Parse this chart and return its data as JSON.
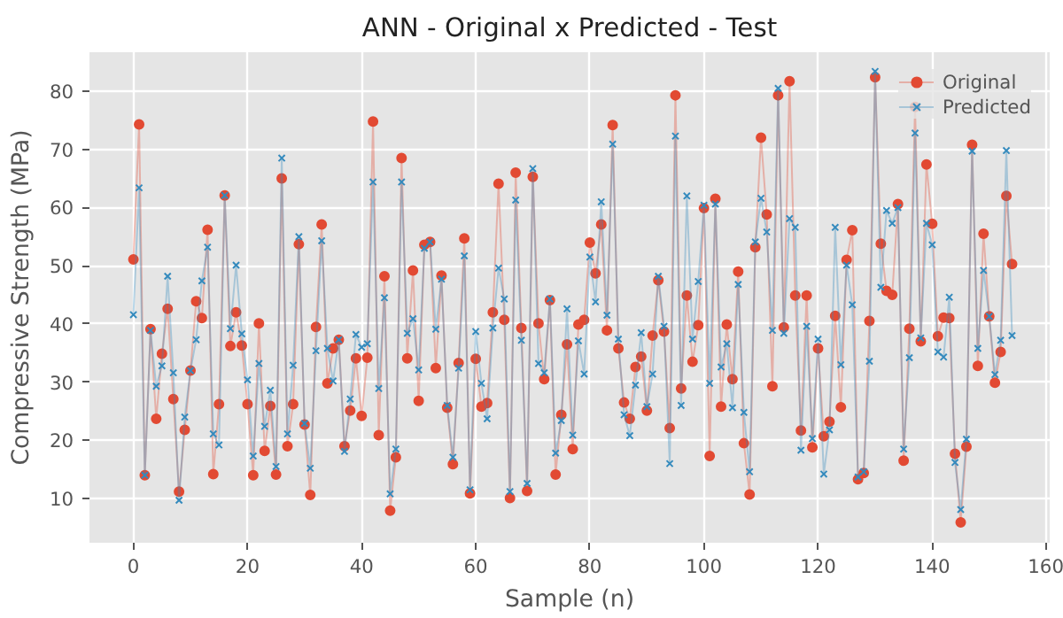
{
  "chart_data": {
    "type": "line",
    "title": "ANN - Original x Predicted - Test",
    "xlabel": "Sample (n)",
    "ylabel": "Compressive Strength (MPa)",
    "x": [
      0,
      1,
      2,
      3,
      4,
      5,
      6,
      7,
      8,
      9,
      10,
      11,
      12,
      13,
      14,
      15,
      16,
      17,
      18,
      19,
      20,
      21,
      22,
      23,
      24,
      25,
      26,
      27,
      28,
      29,
      30,
      31,
      32,
      33,
      34,
      35,
      36,
      37,
      38,
      39,
      40,
      41,
      42,
      43,
      44,
      45,
      46,
      47,
      48,
      49,
      50,
      51,
      52,
      53,
      54,
      55,
      56,
      57,
      58,
      59,
      60,
      61,
      62,
      63,
      64,
      65,
      66,
      67,
      68,
      69,
      70,
      71,
      72,
      73,
      74,
      75,
      76,
      77,
      78,
      79,
      80,
      81,
      82,
      83,
      84,
      85,
      86,
      87,
      88,
      89,
      90,
      91,
      92,
      93,
      94,
      95,
      96,
      97,
      98,
      99,
      100,
      101,
      102,
      103,
      104,
      105,
      106,
      107,
      108,
      109,
      110,
      111,
      112,
      113,
      114,
      115,
      116,
      117,
      118,
      119,
      120,
      121,
      122,
      123,
      124,
      125,
      126,
      127,
      128,
      129,
      130,
      131,
      132,
      133,
      134,
      135,
      136,
      137,
      138,
      139,
      140,
      141,
      142,
      143,
      144,
      145,
      146,
      147,
      148,
      149,
      150,
      151,
      152,
      153,
      154
    ],
    "series": [
      {
        "name": "Original",
        "color": "#e24a33",
        "marker": "circle",
        "values": [
          51.1,
          74.3,
          14,
          39.1,
          23.7,
          34.9,
          42.6,
          27.1,
          11.2,
          21.8,
          32,
          43.9,
          41,
          56.2,
          14.2,
          26.2,
          62.1,
          36.2,
          42,
          36.3,
          26.2,
          14,
          40.1,
          18.2,
          25.9,
          14.1,
          65,
          19,
          26.2,
          53.7,
          22.7,
          10.6,
          39.5,
          57.1,
          29.8,
          35.8,
          37.3,
          19,
          25.1,
          34.1,
          24.2,
          34.2,
          74.8,
          20.9,
          48.2,
          7.9,
          17.1,
          68.5,
          34.1,
          49.2,
          26.8,
          53.6,
          54.1,
          32.4,
          48.3,
          25.6,
          15.9,
          33.3,
          54.7,
          10.9,
          34,
          25.8,
          26.4,
          42,
          64.1,
          40.7,
          10.1,
          66,
          39.3,
          11.3,
          65.3,
          40.1,
          30.5,
          44.1,
          14.1,
          24.4,
          36.5,
          18.5,
          39.9,
          40.7,
          54,
          48.7,
          57.1,
          38.9,
          74.2,
          35.8,
          26.5,
          23.7,
          32.6,
          34.4,
          25.1,
          38,
          47.5,
          38.7,
          22.1,
          79.3,
          28.9,
          44.9,
          33.5,
          39.8,
          59.9,
          17.3,
          61.5,
          25.8,
          39.9,
          30.5,
          49,
          19.5,
          10.7,
          53.2,
          72,
          58.8,
          29.3,
          79.3,
          39.4,
          81.7,
          44.9,
          21.7,
          44.9,
          18.8,
          35.8,
          20.7,
          23.2,
          41.4,
          25.7,
          51,
          56.1,
          13.3,
          14.4,
          40.5,
          82.4,
          53.8,
          45.7,
          45,
          60.6,
          16.5,
          39.2,
          77.3,
          37,
          67.4,
          57.2,
          37.9,
          41.1,
          41,
          17.7,
          5.9,
          18.9,
          70.8,
          32.8,
          55.5,
          41.3,
          29.9,
          35.2,
          62,
          50.3
        ]
      },
      {
        "name": "Predicted",
        "color": "#348abd",
        "marker": "cross",
        "values": [
          41.6,
          63.4,
          14,
          38.9,
          29.3,
          32.8,
          48.2,
          31.6,
          9.7,
          24,
          32,
          37.3,
          47.4,
          53.2,
          21.1,
          19.2,
          62.1,
          39.2,
          50.1,
          38.3,
          30.4,
          17.3,
          33.2,
          22.4,
          28.6,
          15.5,
          68.5,
          21.1,
          32.9,
          55,
          22.9,
          15.2,
          35.4,
          54.3,
          35.8,
          30.2,
          37.3,
          18.1,
          27.1,
          38.2,
          36,
          36.6,
          64.4,
          28.9,
          44.5,
          10.8,
          18.5,
          64.4,
          38.4,
          40.9,
          32.1,
          53,
          54.1,
          39.1,
          47.7,
          26,
          17.1,
          32.4,
          51.7,
          11.5,
          38.7,
          29.8,
          23.7,
          39.3,
          49.6,
          44.3,
          11.2,
          61.3,
          37.2,
          12.6,
          66.7,
          33.2,
          31.6,
          44.3,
          17.8,
          23.4,
          42.6,
          20.9,
          37.1,
          31.4,
          51.5,
          43.8,
          61,
          41.5,
          70.9,
          37.4,
          24.4,
          20.8,
          29.5,
          38.5,
          25.8,
          31.4,
          48.2,
          39.6,
          16,
          72.3,
          26,
          62,
          37.4,
          47.3,
          60.4,
          29.8,
          60.6,
          32.6,
          36.6,
          25.6,
          46.8,
          24.8,
          14.6,
          54.1,
          61.6,
          55.8,
          38.9,
          80.5,
          38.4,
          58.1,
          56.6,
          18.3,
          39.6,
          20.3,
          37.4,
          14.2,
          21.8,
          56.6,
          33,
          50.1,
          43.3,
          13.7,
          14.6,
          33.6,
          83.4,
          46.3,
          59.5,
          57.3,
          60,
          18.5,
          34.2,
          72.8,
          37.6,
          57.3,
          53.6,
          35.2,
          34.3,
          44.6,
          16.2,
          8.1,
          20.2,
          69.7,
          35.8,
          49.2,
          41.3,
          31.3,
          37.2,
          69.8,
          38
        ]
      }
    ],
    "xlim": [
      -7.7,
      160.6
    ],
    "ylim": [
      2.4,
      86.7
    ],
    "xticks": [
      0,
      20,
      40,
      60,
      80,
      100,
      120,
      140,
      160
    ],
    "yticks": [
      10,
      20,
      30,
      40,
      50,
      60,
      70,
      80
    ],
    "grid": true,
    "legend": "top right",
    "line_style": "solid"
  }
}
